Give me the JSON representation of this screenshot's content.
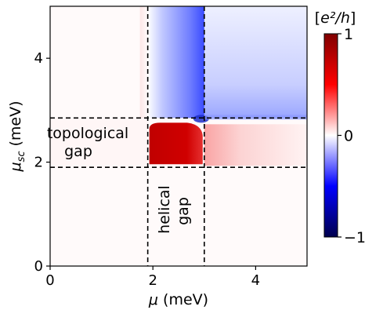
{
  "chart_data": {
    "type": "heatmap",
    "xlabel": "μ (meV)",
    "ylabel": "μ_sc (meV)",
    "xlim": [
      0,
      5
    ],
    "ylim": [
      0,
      5
    ],
    "x_ticks": [
      0,
      2,
      4
    ],
    "y_ticks": [
      0,
      2,
      4
    ],
    "x_tick_labels": [
      "0",
      "2",
      "4"
    ],
    "y_tick_labels": [
      "0",
      "2",
      "4"
    ],
    "colorbar": {
      "label": "[e²/h]",
      "min": -1,
      "max": 1,
      "ticks": [
        1,
        0,
        -1
      ],
      "tick_labels": [
        "1",
        "0",
        "−1"
      ],
      "colormap": "seismic",
      "color_min": "#00004d",
      "color_mid": "#ffffff",
      "color_max": "#800000"
    },
    "dashed_lines": {
      "vertical_at_mu": [
        1.9,
        3.0
      ],
      "horizontal_at_mu_sc": [
        1.9,
        2.85
      ]
    },
    "regions": [
      {
        "name": "topological gap region",
        "mu_range": [
          1.9,
          3.0
        ],
        "mu_sc_range": [
          1.9,
          2.85
        ],
        "approx_value": 0.9
      },
      {
        "name": "right band",
        "mu_range": [
          3.0,
          5.0
        ],
        "mu_sc_range": [
          1.9,
          2.85
        ],
        "approx_value": 0.2
      },
      {
        "name": "upper right",
        "mu_range": [
          3.0,
          5.0
        ],
        "mu_sc_range": [
          2.85,
          5.0
        ],
        "approx_value": -0.3
      },
      {
        "name": "upper vertical strip",
        "mu_range": [
          1.9,
          3.0
        ],
        "mu_sc_range": [
          2.85,
          5.0
        ],
        "approx_value": -0.6
      },
      {
        "name": "left strip",
        "mu_range": [
          1.9,
          2.2
        ],
        "mu_sc_range": [
          2.85,
          5.0
        ],
        "approx_value": 0.1
      },
      {
        "name": "background",
        "mu_range": [
          0,
          5
        ],
        "mu_sc_range": [
          0,
          1.9
        ],
        "approx_value": 0.0
      }
    ],
    "annotations": [
      {
        "text_lines": [
          "topological",
          "gap"
        ]
      },
      {
        "text_lines": [
          "helical",
          "gap"
        ]
      }
    ]
  }
}
